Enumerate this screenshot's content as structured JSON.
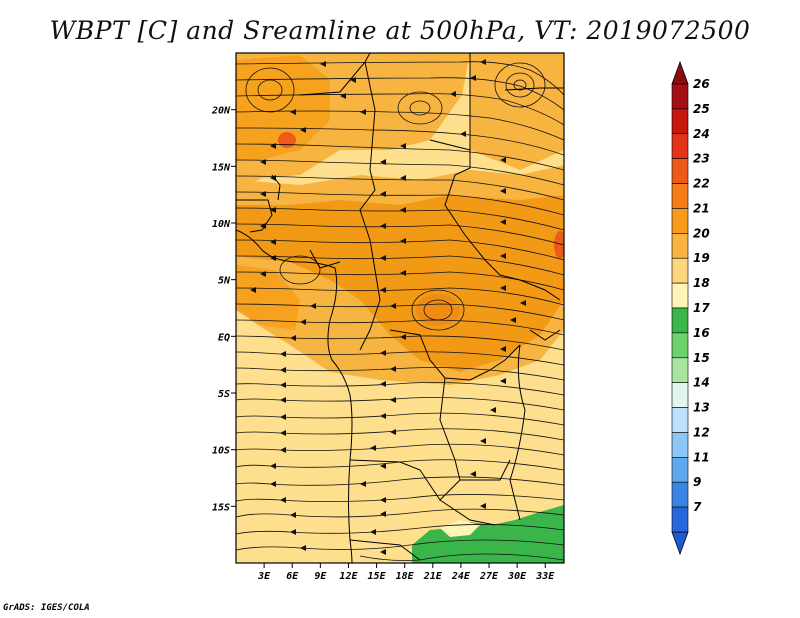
{
  "title": "WBPT [C] and Sreamline at 500hPa, VT: 2019072500",
  "credit": "GrADS: IGES/COLA",
  "map": {
    "lat_labels": [
      "20N",
      "15N",
      "10N",
      "5N",
      "EQ",
      "5S",
      "10S",
      "15S"
    ],
    "lat_values": [
      20,
      15,
      10,
      5,
      0,
      -5,
      -10,
      -15
    ],
    "lon_labels": [
      "3E",
      "6E",
      "9E",
      "12E",
      "15E",
      "18E",
      "21E",
      "24E",
      "27E",
      "30E",
      "33E"
    ],
    "lon_values": [
      3,
      6,
      9,
      12,
      15,
      18,
      21,
      24,
      27,
      30,
      33
    ],
    "lon_range": [
      0,
      35
    ],
    "lat_range": [
      -20,
      25
    ]
  },
  "colorbar": {
    "labels": [
      "26",
      "25",
      "24",
      "23",
      "22",
      "21",
      "20",
      "19",
      "18",
      "17",
      "16",
      "15",
      "14",
      "13",
      "12",
      "11",
      "9",
      "7"
    ],
    "colors": [
      "#a50f15",
      "#c8180e",
      "#e4321b",
      "#ee5a1a",
      "#f47d18",
      "#f89a1c",
      "#f8b441",
      "#fcd57f",
      "#fef4b5",
      "#3ab54a",
      "#6dd36d",
      "#a8e6a0",
      "#e2f6ee",
      "#bde0fb",
      "#8cc6f5",
      "#5ea8ee",
      "#3b86e3",
      "#2668d9"
    ]
  }
}
